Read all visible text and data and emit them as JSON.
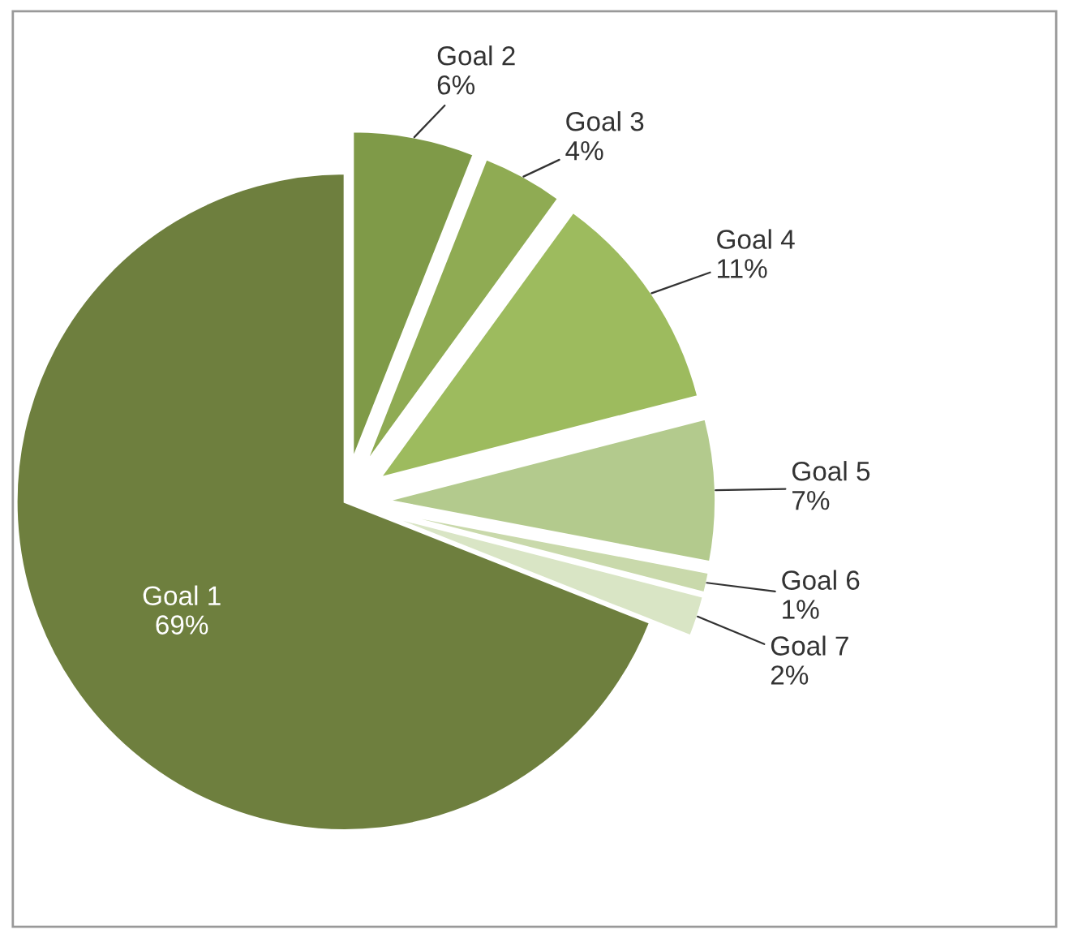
{
  "chart_data": {
    "type": "pie",
    "categories": [
      "Goal 1",
      "Goal 2",
      "Goal 3",
      "Goal 4",
      "Goal 5",
      "Goal 6",
      "Goal 7"
    ],
    "values": [
      69,
      6,
      4,
      11,
      7,
      1,
      2
    ],
    "value_labels": [
      "69%",
      "6%",
      "4%",
      "11%",
      "7%",
      "1%",
      "2%"
    ],
    "colors": [
      "#6e7f3e",
      "#7f9a48",
      "#8fab53",
      "#9dbb5e",
      "#b3ca8d",
      "#c9d9ab",
      "#d9e5c5"
    ],
    "legend": false
  }
}
